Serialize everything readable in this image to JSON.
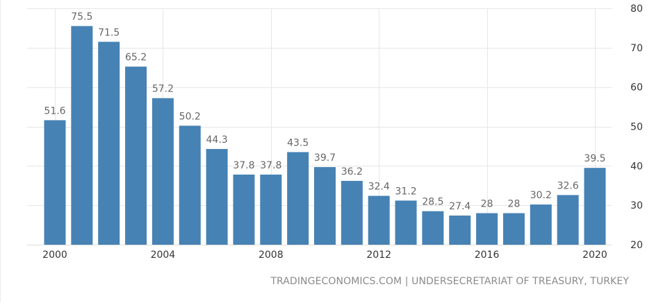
{
  "chart_data": {
    "type": "bar",
    "categories": [
      "2000",
      "2001",
      "2002",
      "2003",
      "2004",
      "2005",
      "2006",
      "2007",
      "2008",
      "2009",
      "2010",
      "2011",
      "2012",
      "2013",
      "2014",
      "2015",
      "2016",
      "2017",
      "2018",
      "2019",
      "2020"
    ],
    "values": [
      51.6,
      75.5,
      71.5,
      65.2,
      57.2,
      50.2,
      44.3,
      37.8,
      37.8,
      43.5,
      39.7,
      36.2,
      32.4,
      31.2,
      28.5,
      27.4,
      28,
      28,
      30.2,
      32.6,
      39.5
    ],
    "data_labels": [
      "51.6",
      "75.5",
      "71.5",
      "65.2",
      "57.2",
      "50.2",
      "44.3",
      "37.8",
      "37.8",
      "43.5",
      "39.7",
      "36.2",
      "32.4",
      "31.2",
      "28.5",
      "27.4",
      "28",
      "28",
      "30.2",
      "32.6",
      "39.5"
    ],
    "x_ticks": [
      "2000",
      "2004",
      "2008",
      "2012",
      "2016",
      "2020"
    ],
    "y_ticks": [
      "20",
      "30",
      "40",
      "50",
      "60",
      "70",
      "80"
    ],
    "ylim": [
      20,
      80
    ],
    "y_axis_side": "right",
    "grid": true,
    "bar_color": "#4682b4",
    "grid_color": "#e6e6e6",
    "label_color": "#666666",
    "title": "",
    "xlabel": "",
    "ylabel": ""
  },
  "source": {
    "text": "TRADINGECONOMICS.COM | UNDERSECRETARIAT OF TREASURY, TURKEY"
  }
}
